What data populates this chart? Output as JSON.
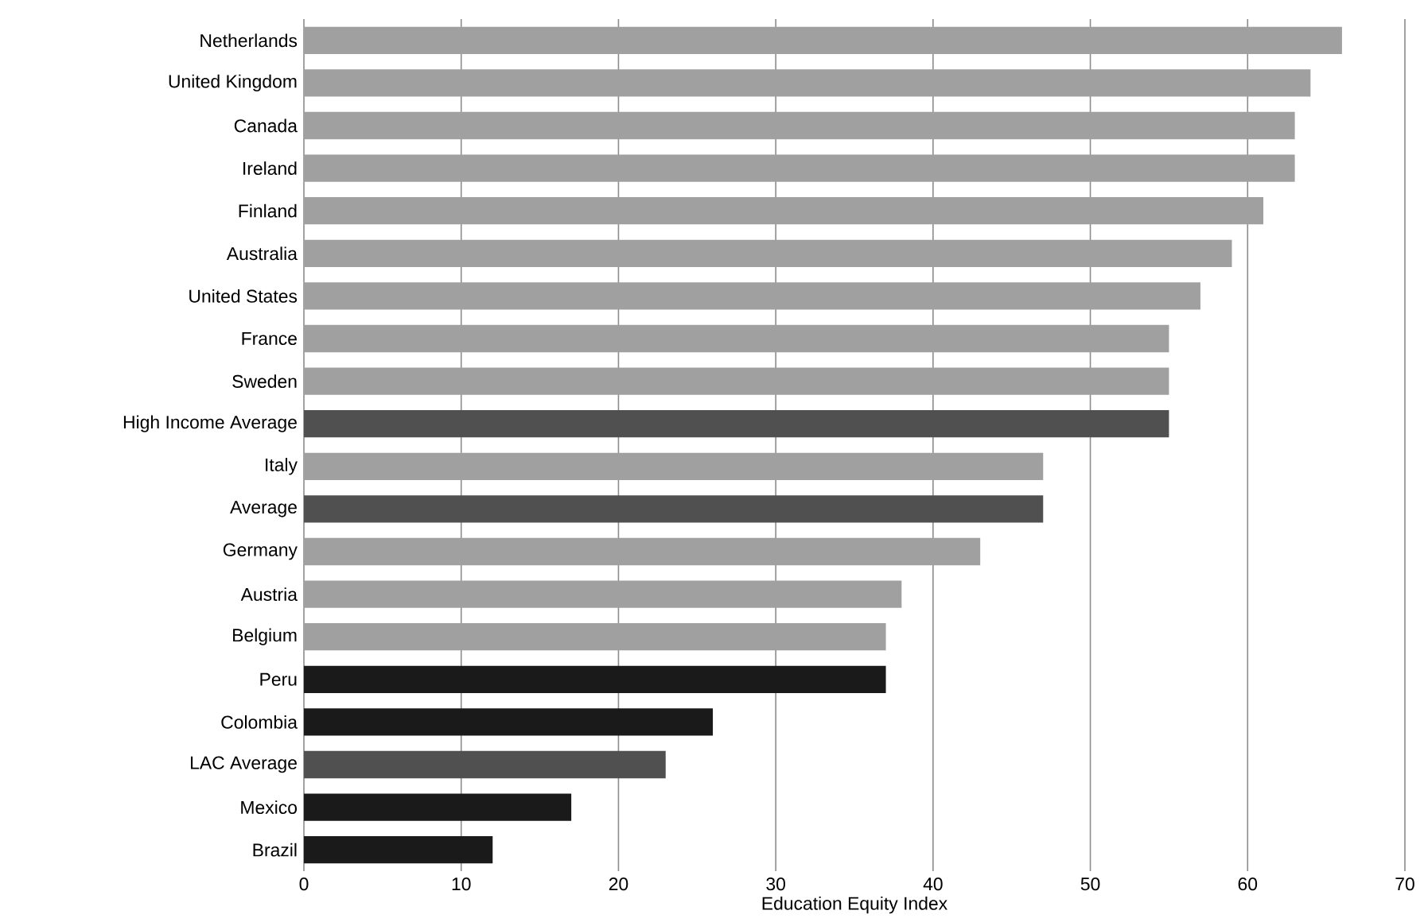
{
  "chart_data": {
    "type": "bar",
    "orientation": "horizontal",
    "xlabel": "Education Equity Index",
    "categories": [
      "Netherlands",
      "United Kingdom",
      "Canada",
      "Ireland",
      "Finland",
      "Australia",
      "United States",
      "France",
      "Sweden",
      "High Income Average",
      "Italy",
      "Average",
      "Germany",
      "Austria",
      "Belgium",
      "Peru",
      "Colombia",
      "LAC Average",
      "Mexico",
      "Brazil"
    ],
    "values": [
      66,
      64,
      63,
      63,
      61,
      59,
      57,
      55,
      55,
      55,
      47,
      47,
      43,
      38,
      37,
      37,
      26,
      23,
      17,
      12
    ],
    "colors": [
      "#a0a0a0",
      "#a0a0a0",
      "#a0a0a0",
      "#a0a0a0",
      "#a0a0a0",
      "#a0a0a0",
      "#a0a0a0",
      "#a0a0a0",
      "#a0a0a0",
      "#505050",
      "#a0a0a0",
      "#505050",
      "#a0a0a0",
      "#a0a0a0",
      "#a0a0a0",
      "#1a1a1a",
      "#1a1a1a",
      "#505050",
      "#1a1a1a",
      "#1a1a1a"
    ],
    "xlim": [
      0,
      70
    ],
    "xticks": [
      0,
      10,
      20,
      30,
      40,
      50,
      60,
      70
    ],
    "grid": "x"
  }
}
